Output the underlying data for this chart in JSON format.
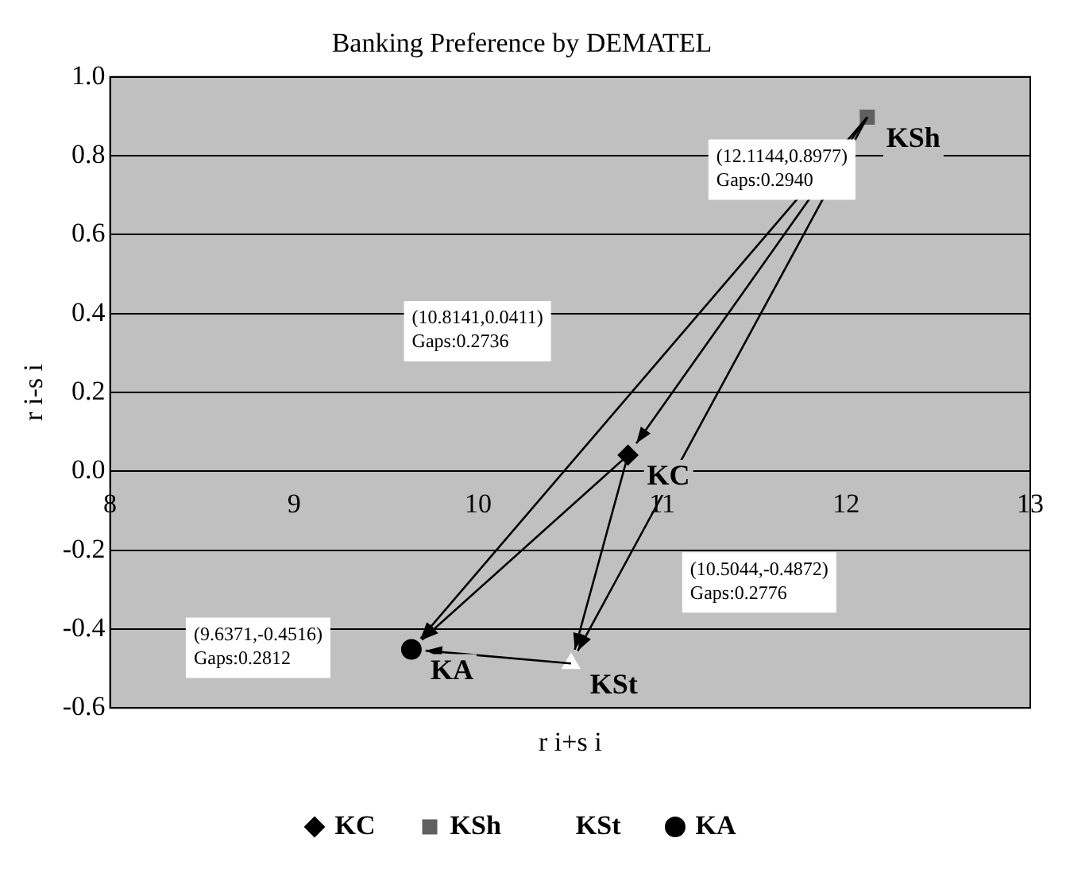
{
  "chart_data": {
    "type": "scatter",
    "title": "Banking Preference by DEMATEL",
    "xlabel": "r i+s i",
    "ylabel": "r i-s i",
    "series": [
      {
        "name": "KC",
        "color": "#000000",
        "marker": "diamond",
        "x": [
          10.8141
        ],
        "values": [
          0.0411
        ]
      },
      {
        "name": "KSh",
        "color": "#606060",
        "marker": "square",
        "x": [
          12.1144
        ],
        "values": [
          0.8977
        ]
      },
      {
        "name": "KSt",
        "color": "#ffffff",
        "marker": "triangle",
        "x": [
          10.5044
        ],
        "values": [
          -0.4872
        ]
      },
      {
        "name": "KA",
        "color": "#000000",
        "marker": "circle",
        "x": [
          9.6371
        ],
        "values": [
          -0.4516
        ]
      }
    ],
    "annotations": [
      "(10.8141,0.0411)\nGaps:0.2736",
      "(12.1144,0.8977)\nGaps:0.2940",
      "(10.5044,-0.4872)\nGaps:0.2776",
      "(9.6371,-0.4516)\nGaps:0.2812"
    ],
    "xlim": [
      8,
      13
    ],
    "xticks": [
      8,
      9,
      10,
      11,
      12,
      13
    ],
    "ylim": [
      -0.6,
      1.0
    ],
    "yticks": [
      -0.6,
      -0.4,
      -0.2,
      {
        "value": 0,
        "label": "0.0"
      },
      0.2,
      0.4,
      0.6,
      0.8,
      {
        "value": 1.0,
        "label": "1.0"
      }
    ],
    "grid": "y",
    "legend": "bottom"
  }
}
